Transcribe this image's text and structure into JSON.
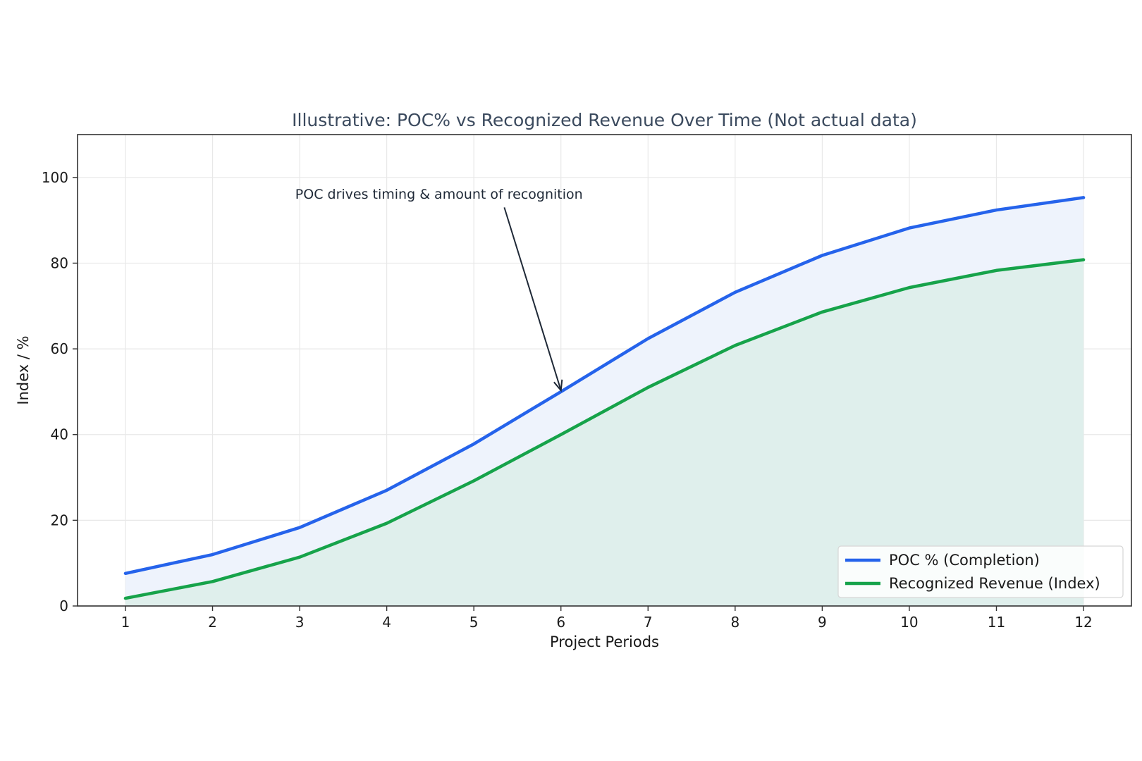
{
  "chart_data": {
    "type": "line",
    "title": "Illustrative: POC% vs Recognized Revenue Over Time (Not actual data)",
    "xlabel": "Project Periods",
    "ylabel": "Index / %",
    "x": [
      1,
      2,
      3,
      4,
      5,
      6,
      7,
      8,
      9,
      10,
      11,
      12
    ],
    "xlim": [
      0.45,
      12.55
    ],
    "ylim": [
      0,
      110
    ],
    "yticks": [
      0,
      20,
      40,
      60,
      80,
      100
    ],
    "grid": true,
    "legend_position": "lower-right",
    "series": [
      {
        "name": "POC % (Completion)",
        "color": "#2563eb",
        "fill": "#eef3fc",
        "values": [
          7.6,
          12.0,
          18.3,
          27.0,
          37.8,
          50.0,
          62.4,
          73.2,
          81.8,
          88.2,
          92.4,
          95.3
        ]
      },
      {
        "name": "Recognized Revenue (Index)",
        "color": "#16a34a",
        "fill": "#dfefec",
        "values": [
          1.8,
          5.7,
          11.4,
          19.3,
          29.2,
          40.0,
          51.0,
          60.8,
          68.6,
          74.3,
          78.3,
          80.8
        ]
      }
    ],
    "annotation": {
      "text": "POC drives timing & amount of recognition",
      "text_x": 4.6,
      "text_y": 96,
      "arrow_from_x": 5.35,
      "arrow_from_y": 93,
      "point_x": 6,
      "point_y": 50
    }
  }
}
